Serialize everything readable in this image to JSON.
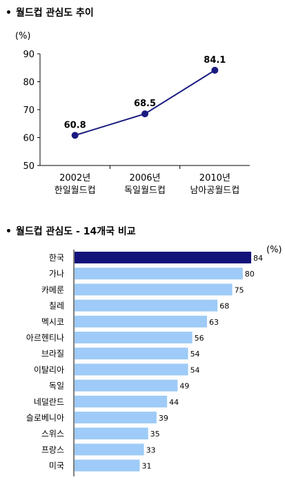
{
  "charts": {
    "trend": {
      "title": "월드컵 관심도 추이",
      "unit": "(%)"
    },
    "compare": {
      "title": "월드컵 관심도 - 14개국 비교",
      "unit": "(%)"
    }
  },
  "chart_data": [
    {
      "type": "line",
      "title": "월드컵 관심도 추이",
      "ylabel": "(%)",
      "ylim": [
        50,
        90
      ],
      "yticks": [
        "50",
        "60",
        "70",
        "80",
        "90"
      ],
      "categories": [
        [
          "2002년",
          "한일월드컵"
        ],
        [
          "2006년",
          "독일월드컵"
        ],
        [
          "2010년",
          "남아공월드컵"
        ]
      ],
      "values": [
        60.8,
        68.5,
        84.1
      ],
      "data_labels": [
        "60.8",
        "68.5",
        "84.1"
      ],
      "color": "#1a1a80",
      "grid": false
    },
    {
      "type": "bar",
      "orientation": "horizontal",
      "title": "월드컵 관심도 - 14개국 비교",
      "unit": "(%)",
      "xlim": [
        0,
        84
      ],
      "categories": [
        "한국",
        "가나",
        "카메룬",
        "칠레",
        "멕시코",
        "아르헨티나",
        "브라질",
        "이탈리아",
        "독일",
        "네덜란드",
        "슬로베니아",
        "스위스",
        "프랑스",
        "미국"
      ],
      "values": [
        84,
        80,
        75,
        68,
        63,
        56,
        54,
        54,
        49,
        44,
        39,
        35,
        33,
        31
      ],
      "highlight_index": 0,
      "colors": {
        "highlight": "#12127a",
        "normal": "#9ecbf7"
      },
      "grid": false
    }
  ]
}
